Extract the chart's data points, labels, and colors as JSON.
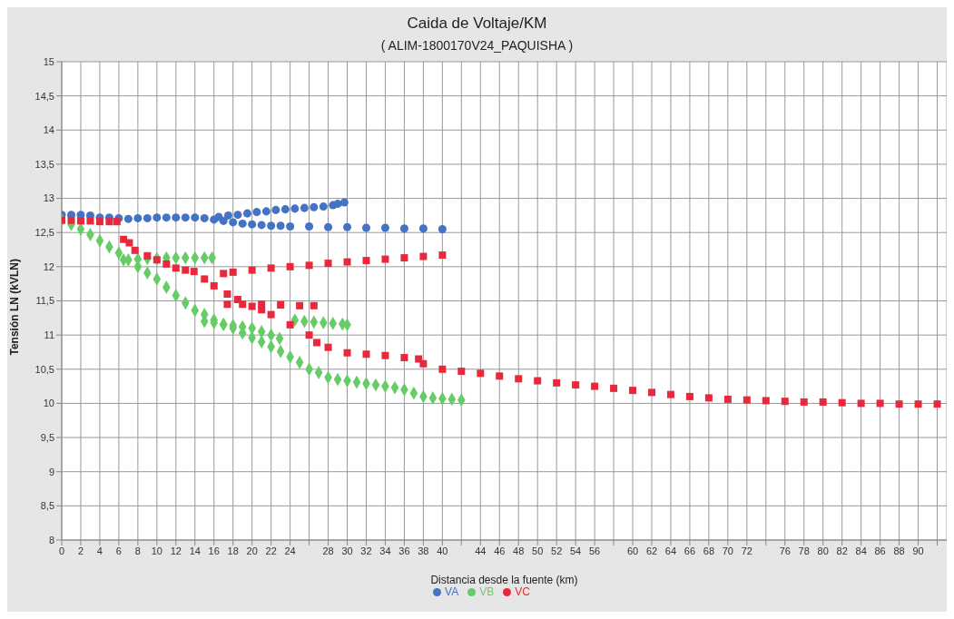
{
  "chart_data": {
    "type": "scatter",
    "title": "Caida de Voltaje/KM",
    "subtitle": "( ALIM-1800170V24_PAQUISHA )",
    "xlabel": "Distancia desde la fuente (km)",
    "ylabel": "Tensión LN (kVLN)",
    "xlim": [
      0,
      93
    ],
    "ylim": [
      8,
      15
    ],
    "xticks": [
      0,
      2,
      4,
      6,
      8,
      10,
      12,
      14,
      16,
      18,
      20,
      22,
      24,
      {
        "value": 26,
        "label": null
      },
      28,
      30,
      32,
      34,
      36,
      38,
      40,
      {
        "value": 42,
        "label": null
      },
      44,
      46,
      48,
      50,
      52,
      54,
      56,
      {
        "value": 58,
        "label": null
      },
      60,
      62,
      64,
      66,
      68,
      70,
      72,
      {
        "value": 74,
        "label": null
      },
      76,
      78,
      80,
      82,
      84,
      86,
      88,
      90,
      {
        "value": 92,
        "label": null
      }
    ],
    "yticks": [
      8,
      {
        "value": 8.5,
        "label": "8,5"
      },
      9,
      {
        "value": 9.5,
        "label": "9,5"
      },
      10,
      {
        "value": 10.5,
        "label": "10,5"
      },
      11,
      {
        "value": 11.5,
        "label": "11,5"
      },
      12,
      {
        "value": 12.5,
        "label": "12,5"
      },
      13,
      {
        "value": 13.5,
        "label": "13,5"
      },
      14,
      {
        "value": 14.5,
        "label": "14,5"
      },
      15
    ],
    "grid": true,
    "legend": "bottom",
    "series": [
      {
        "name": "VA",
        "color": "#4472c4",
        "marker": "circle",
        "x": [
          0,
          1,
          2,
          3,
          4,
          5,
          6,
          7,
          8,
          9,
          10,
          11,
          12,
          13,
          14,
          15,
          16,
          17,
          18,
          19,
          20,
          21,
          22,
          23,
          24,
          26,
          28,
          30,
          32,
          34,
          36,
          38,
          40,
          16.5,
          17.5,
          18.5,
          19.5,
          20.5,
          21.5,
          22.5,
          23.5,
          24.5,
          25.5,
          26.5,
          27.5,
          28.5,
          29,
          29.7
        ],
        "values": [
          12.76,
          12.76,
          12.76,
          12.75,
          12.72,
          12.72,
          12.71,
          12.7,
          12.71,
          12.71,
          12.72,
          12.72,
          12.72,
          12.72,
          12.72,
          12.71,
          12.69,
          12.67,
          12.65,
          12.63,
          12.62,
          12.61,
          12.6,
          12.6,
          12.59,
          12.59,
          12.58,
          12.58,
          12.57,
          12.57,
          12.56,
          12.56,
          12.55,
          12.73,
          12.75,
          12.76,
          12.78,
          12.8,
          12.81,
          12.83,
          12.84,
          12.85,
          12.86,
          12.87,
          12.88,
          12.9,
          12.92,
          12.94
        ]
      },
      {
        "name": "VB",
        "color": "#66cc66",
        "marker": "diamond",
        "x": [
          0,
          1,
          2,
          3,
          4,
          5,
          6,
          7,
          8,
          9,
          10,
          11,
          12,
          13,
          14,
          15,
          16,
          17,
          18,
          19,
          20,
          21,
          22,
          23,
          24,
          25,
          26,
          27,
          28,
          29,
          30,
          31,
          32,
          33,
          34,
          35,
          36,
          37,
          38,
          39,
          40,
          41,
          42,
          6.5,
          8,
          9,
          10,
          11,
          12,
          13,
          14,
          15,
          15.8,
          15,
          16,
          17,
          18,
          19,
          20,
          21,
          22,
          22.9,
          24.5,
          25.5,
          26.5,
          27.5,
          28.5,
          29.5,
          30
        ],
        "values": [
          12.68,
          12.62,
          12.55,
          12.47,
          12.38,
          12.29,
          12.2,
          12.1,
          12.0,
          11.91,
          11.82,
          11.7,
          11.58,
          11.47,
          11.36,
          11.3,
          11.22,
          11.15,
          11.1,
          11.03,
          10.96,
          10.9,
          10.83,
          10.76,
          10.68,
          10.6,
          10.5,
          10.45,
          10.38,
          10.35,
          10.33,
          10.31,
          10.29,
          10.27,
          10.25,
          10.23,
          10.2,
          10.15,
          10.1,
          10.08,
          10.07,
          10.06,
          10.05,
          12.1,
          12.11,
          12.12,
          12.12,
          12.13,
          12.13,
          12.13,
          12.13,
          12.13,
          12.13,
          11.2,
          11.18,
          11.16,
          11.14,
          11.12,
          11.1,
          11.05,
          11.0,
          10.95,
          11.22,
          11.2,
          11.19,
          11.18,
          11.17,
          11.16,
          11.15
        ]
      },
      {
        "name": "VC",
        "color": "#e8283c",
        "marker": "square",
        "x": [
          0,
          1,
          2,
          3,
          4,
          5,
          5.8,
          6.5,
          7.1,
          7.7,
          9,
          10,
          11,
          12,
          13,
          13.9,
          15,
          16,
          17,
          18,
          20,
          22,
          24,
          26,
          28,
          30,
          32,
          34,
          36,
          38,
          40,
          17.4,
          18.5,
          20,
          21,
          22,
          24,
          26,
          26.8,
          28,
          30,
          32,
          34,
          36,
          37.5,
          38,
          40,
          42,
          44,
          46,
          48,
          50,
          52,
          54,
          56,
          58,
          60,
          62,
          64,
          66,
          68,
          70,
          72,
          74,
          76,
          78,
          80,
          82,
          84,
          86,
          88,
          90,
          92,
          17.4,
          19,
          21,
          23,
          25,
          26.5
        ],
        "values": [
          12.68,
          12.68,
          12.67,
          12.67,
          12.66,
          12.66,
          12.66,
          12.4,
          12.35,
          12.24,
          12.16,
          12.1,
          12.04,
          11.98,
          11.95,
          11.93,
          11.82,
          11.72,
          11.9,
          11.92,
          11.95,
          11.98,
          12.0,
          12.02,
          12.05,
          12.07,
          12.09,
          12.11,
          12.13,
          12.15,
          12.17,
          11.6,
          11.52,
          11.42,
          11.37,
          11.3,
          11.15,
          11.0,
          10.89,
          10.82,
          10.74,
          10.72,
          10.7,
          10.67,
          10.65,
          10.58,
          10.5,
          10.47,
          10.44,
          10.4,
          10.36,
          10.33,
          10.3,
          10.27,
          10.25,
          10.22,
          10.19,
          10.16,
          10.13,
          10.1,
          10.08,
          10.06,
          10.05,
          10.04,
          10.03,
          10.02,
          10.02,
          10.01,
          10.0,
          10.0,
          9.99,
          9.99,
          9.99,
          11.45,
          11.45,
          11.45,
          11.44,
          11.43,
          11.43
        ]
      }
    ]
  }
}
